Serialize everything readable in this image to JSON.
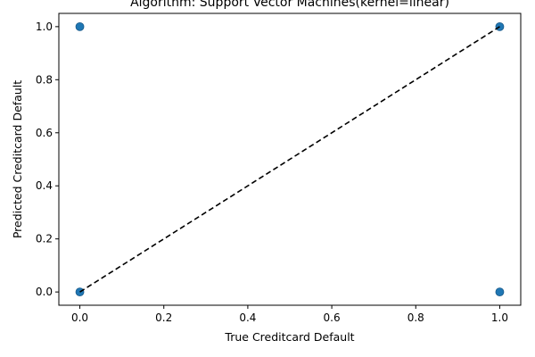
{
  "chart_data": {
    "type": "scatter",
    "title": "Algorithm: Support Vector Machines(kernel=linear)",
    "xlabel": "True Creditcard Default",
    "ylabel": "Predicted Creditcard Default",
    "xlim": [
      -0.05,
      1.05
    ],
    "ylim": [
      -0.05,
      1.05
    ],
    "x_ticks": [
      0.0,
      0.2,
      0.4,
      0.6,
      0.8,
      1.0
    ],
    "y_ticks": [
      0.0,
      0.2,
      0.4,
      0.6,
      0.8,
      1.0
    ],
    "x_tick_labels": [
      "0.0",
      "0.2",
      "0.4",
      "0.6",
      "0.8",
      "1.0"
    ],
    "y_tick_labels": [
      "0.0",
      "0.2",
      "0.4",
      "0.6",
      "0.8",
      "1.0"
    ],
    "grid": false,
    "points": [
      {
        "x": 0,
        "y": 0
      },
      {
        "x": 0,
        "y": 1
      },
      {
        "x": 1,
        "y": 0
      },
      {
        "x": 1,
        "y": 1
      }
    ],
    "reference_line": {
      "x": [
        0,
        1
      ],
      "y": [
        0,
        1
      ],
      "style": "dashed",
      "color": "#000000"
    },
    "point_color": "#1f77b4",
    "point_edge_color": "#1a5a8a"
  }
}
